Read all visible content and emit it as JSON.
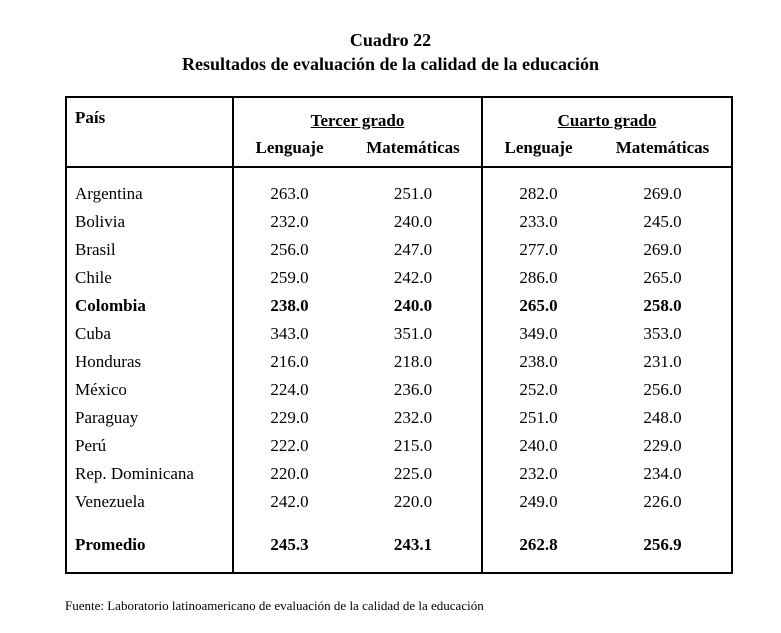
{
  "page": {
    "title": "Cuadro 22",
    "subtitle": "Resultados de evaluación de la calidad de la educación",
    "source": "Fuente: Laboratorio latinoamericano de evaluación de la calidad de la educación"
  },
  "table": {
    "country_header": "País",
    "groups": [
      {
        "label": "Tercer grado",
        "columns": [
          "Lenguaje",
          "Matemáticas"
        ]
      },
      {
        "label": "Cuarto grado",
        "columns": [
          "Lenguaje",
          "Matemáticas"
        ]
      }
    ],
    "rows": [
      {
        "country": "Argentina",
        "bold": false,
        "values": [
          "263.0",
          "251.0",
          "282.0",
          "269.0"
        ]
      },
      {
        "country": "Bolivia",
        "bold": false,
        "values": [
          "232.0",
          "240.0",
          "233.0",
          "245.0"
        ]
      },
      {
        "country": "Brasil",
        "bold": false,
        "values": [
          "256.0",
          "247.0",
          "277.0",
          "269.0"
        ]
      },
      {
        "country": "Chile",
        "bold": false,
        "values": [
          "259.0",
          "242.0",
          "286.0",
          "265.0"
        ]
      },
      {
        "country": "Colombia",
        "bold": true,
        "values": [
          "238.0",
          "240.0",
          "265.0",
          "258.0"
        ]
      },
      {
        "country": "Cuba",
        "bold": false,
        "values": [
          "343.0",
          "351.0",
          "349.0",
          "353.0"
        ]
      },
      {
        "country": "Honduras",
        "bold": false,
        "values": [
          "216.0",
          "218.0",
          "238.0",
          "231.0"
        ]
      },
      {
        "country": "México",
        "bold": false,
        "values": [
          "224.0",
          "236.0",
          "252.0",
          "256.0"
        ]
      },
      {
        "country": "Paraguay",
        "bold": false,
        "values": [
          "229.0",
          "232.0",
          "251.0",
          "248.0"
        ]
      },
      {
        "country": "Perú",
        "bold": false,
        "values": [
          "222.0",
          "215.0",
          "240.0",
          "229.0"
        ]
      },
      {
        "country": "Rep. Dominicana",
        "bold": false,
        "values": [
          "220.0",
          "225.0",
          "232.0",
          "234.0"
        ]
      },
      {
        "country": "Venezuela",
        "bold": false,
        "values": [
          "242.0",
          "220.0",
          "249.0",
          "226.0"
        ]
      }
    ],
    "total": {
      "label": "Promedio",
      "values": [
        "245.3",
        "243.1",
        "262.8",
        "256.9"
      ]
    }
  }
}
